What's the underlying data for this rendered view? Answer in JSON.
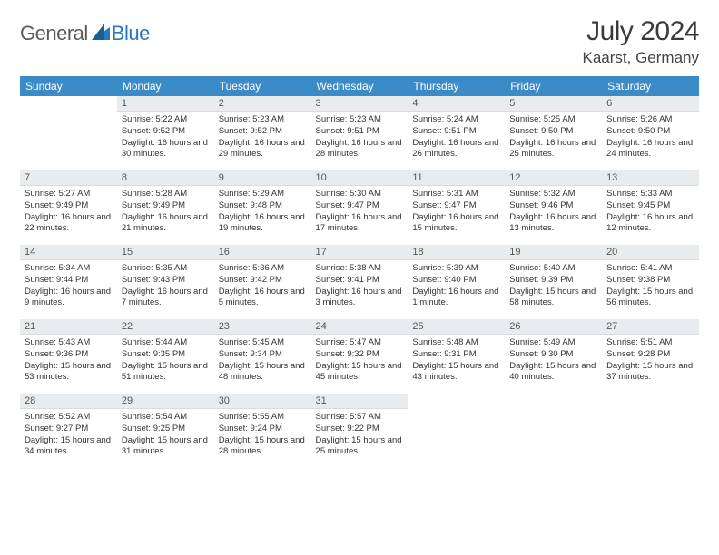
{
  "brand": {
    "part1": "General",
    "part2": "Blue"
  },
  "title": "July 2024",
  "location": "Kaarst, Germany",
  "colors": {
    "header_bg": "#3b8bc9",
    "header_text": "#ffffff",
    "daynum_bg": "#e9ecef",
    "body_text": "#333333",
    "brand_gray": "#5a5a5a",
    "brand_blue": "#2878bd"
  },
  "typography": {
    "title_fontsize": 30,
    "location_fontsize": 17,
    "header_fontsize": 12,
    "cell_fontsize": 9.5
  },
  "weekdays": [
    "Sunday",
    "Monday",
    "Tuesday",
    "Wednesday",
    "Thursday",
    "Friday",
    "Saturday"
  ],
  "weeks": [
    [
      {
        "empty": true
      },
      {
        "n": "1",
        "sunrise": "Sunrise: 5:22 AM",
        "sunset": "Sunset: 9:52 PM",
        "daylight": "Daylight: 16 hours and 30 minutes."
      },
      {
        "n": "2",
        "sunrise": "Sunrise: 5:23 AM",
        "sunset": "Sunset: 9:52 PM",
        "daylight": "Daylight: 16 hours and 29 minutes."
      },
      {
        "n": "3",
        "sunrise": "Sunrise: 5:23 AM",
        "sunset": "Sunset: 9:51 PM",
        "daylight": "Daylight: 16 hours and 28 minutes."
      },
      {
        "n": "4",
        "sunrise": "Sunrise: 5:24 AM",
        "sunset": "Sunset: 9:51 PM",
        "daylight": "Daylight: 16 hours and 26 minutes."
      },
      {
        "n": "5",
        "sunrise": "Sunrise: 5:25 AM",
        "sunset": "Sunset: 9:50 PM",
        "daylight": "Daylight: 16 hours and 25 minutes."
      },
      {
        "n": "6",
        "sunrise": "Sunrise: 5:26 AM",
        "sunset": "Sunset: 9:50 PM",
        "daylight": "Daylight: 16 hours and 24 minutes."
      }
    ],
    [
      {
        "n": "7",
        "sunrise": "Sunrise: 5:27 AM",
        "sunset": "Sunset: 9:49 PM",
        "daylight": "Daylight: 16 hours and 22 minutes."
      },
      {
        "n": "8",
        "sunrise": "Sunrise: 5:28 AM",
        "sunset": "Sunset: 9:49 PM",
        "daylight": "Daylight: 16 hours and 21 minutes."
      },
      {
        "n": "9",
        "sunrise": "Sunrise: 5:29 AM",
        "sunset": "Sunset: 9:48 PM",
        "daylight": "Daylight: 16 hours and 19 minutes."
      },
      {
        "n": "10",
        "sunrise": "Sunrise: 5:30 AM",
        "sunset": "Sunset: 9:47 PM",
        "daylight": "Daylight: 16 hours and 17 minutes."
      },
      {
        "n": "11",
        "sunrise": "Sunrise: 5:31 AM",
        "sunset": "Sunset: 9:47 PM",
        "daylight": "Daylight: 16 hours and 15 minutes."
      },
      {
        "n": "12",
        "sunrise": "Sunrise: 5:32 AM",
        "sunset": "Sunset: 9:46 PM",
        "daylight": "Daylight: 16 hours and 13 minutes."
      },
      {
        "n": "13",
        "sunrise": "Sunrise: 5:33 AM",
        "sunset": "Sunset: 9:45 PM",
        "daylight": "Daylight: 16 hours and 12 minutes."
      }
    ],
    [
      {
        "n": "14",
        "sunrise": "Sunrise: 5:34 AM",
        "sunset": "Sunset: 9:44 PM",
        "daylight": "Daylight: 16 hours and 9 minutes."
      },
      {
        "n": "15",
        "sunrise": "Sunrise: 5:35 AM",
        "sunset": "Sunset: 9:43 PM",
        "daylight": "Daylight: 16 hours and 7 minutes."
      },
      {
        "n": "16",
        "sunrise": "Sunrise: 5:36 AM",
        "sunset": "Sunset: 9:42 PM",
        "daylight": "Daylight: 16 hours and 5 minutes."
      },
      {
        "n": "17",
        "sunrise": "Sunrise: 5:38 AM",
        "sunset": "Sunset: 9:41 PM",
        "daylight": "Daylight: 16 hours and 3 minutes."
      },
      {
        "n": "18",
        "sunrise": "Sunrise: 5:39 AM",
        "sunset": "Sunset: 9:40 PM",
        "daylight": "Daylight: 16 hours and 1 minute."
      },
      {
        "n": "19",
        "sunrise": "Sunrise: 5:40 AM",
        "sunset": "Sunset: 9:39 PM",
        "daylight": "Daylight: 15 hours and 58 minutes."
      },
      {
        "n": "20",
        "sunrise": "Sunrise: 5:41 AM",
        "sunset": "Sunset: 9:38 PM",
        "daylight": "Daylight: 15 hours and 56 minutes."
      }
    ],
    [
      {
        "n": "21",
        "sunrise": "Sunrise: 5:43 AM",
        "sunset": "Sunset: 9:36 PM",
        "daylight": "Daylight: 15 hours and 53 minutes."
      },
      {
        "n": "22",
        "sunrise": "Sunrise: 5:44 AM",
        "sunset": "Sunset: 9:35 PM",
        "daylight": "Daylight: 15 hours and 51 minutes."
      },
      {
        "n": "23",
        "sunrise": "Sunrise: 5:45 AM",
        "sunset": "Sunset: 9:34 PM",
        "daylight": "Daylight: 15 hours and 48 minutes."
      },
      {
        "n": "24",
        "sunrise": "Sunrise: 5:47 AM",
        "sunset": "Sunset: 9:32 PM",
        "daylight": "Daylight: 15 hours and 45 minutes."
      },
      {
        "n": "25",
        "sunrise": "Sunrise: 5:48 AM",
        "sunset": "Sunset: 9:31 PM",
        "daylight": "Daylight: 15 hours and 43 minutes."
      },
      {
        "n": "26",
        "sunrise": "Sunrise: 5:49 AM",
        "sunset": "Sunset: 9:30 PM",
        "daylight": "Daylight: 15 hours and 40 minutes."
      },
      {
        "n": "27",
        "sunrise": "Sunrise: 5:51 AM",
        "sunset": "Sunset: 9:28 PM",
        "daylight": "Daylight: 15 hours and 37 minutes."
      }
    ],
    [
      {
        "n": "28",
        "sunrise": "Sunrise: 5:52 AM",
        "sunset": "Sunset: 9:27 PM",
        "daylight": "Daylight: 15 hours and 34 minutes."
      },
      {
        "n": "29",
        "sunrise": "Sunrise: 5:54 AM",
        "sunset": "Sunset: 9:25 PM",
        "daylight": "Daylight: 15 hours and 31 minutes."
      },
      {
        "n": "30",
        "sunrise": "Sunrise: 5:55 AM",
        "sunset": "Sunset: 9:24 PM",
        "daylight": "Daylight: 15 hours and 28 minutes."
      },
      {
        "n": "31",
        "sunrise": "Sunrise: 5:57 AM",
        "sunset": "Sunset: 9:22 PM",
        "daylight": "Daylight: 15 hours and 25 minutes."
      },
      {
        "empty": true
      },
      {
        "empty": true
      },
      {
        "empty": true
      }
    ]
  ]
}
